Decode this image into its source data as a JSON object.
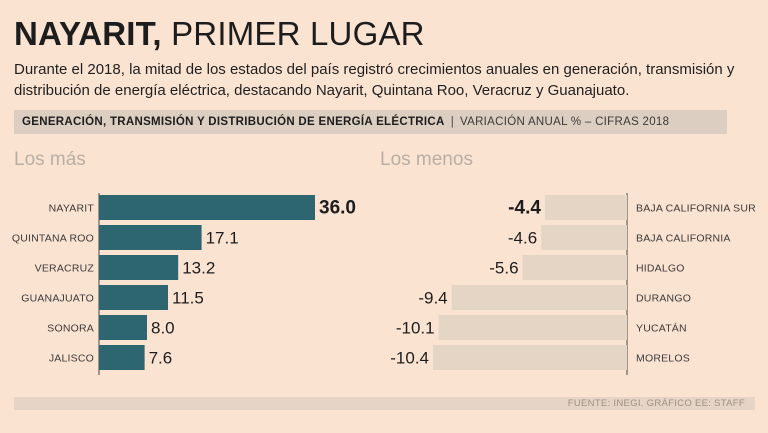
{
  "header": {
    "title_bold": "NAYARIT,",
    "title_rest": "PRIMER LUGAR",
    "subtitle": "Durante el 2018, la mitad de los estados del país registró crecimientos anuales en generación, transmisión y distribución de energía eléctrica, destacando Nayarit, Quintana Roo, Veracruz y Guanajuato."
  },
  "banner": {
    "title": "GENERACIÓN, TRANSMISIÓN Y DISTRIBUCIÓN DE ENERGÍA ELÉCTRICA",
    "separator": "|",
    "subtitle": "VARIACIÓN ANUAL % – CIFRAS 2018"
  },
  "sections": {
    "left": "Los más",
    "right": "Los menos"
  },
  "footer": {
    "source": "FUENTE: INEGI. GRÁFICO EE: STAFF"
  },
  "colors": {
    "positive_bar": "#2d6670",
    "negative_bar": "#e5d5c4",
    "axis": "#444444"
  },
  "chart_data": [
    {
      "type": "bar",
      "orientation": "horizontal",
      "title": "Los más",
      "categories": [
        "NAYARIT",
        "QUINTANA ROO",
        "VERACRUZ",
        "GUANAJUATO",
        "SONORA",
        "JALISCO"
      ],
      "values": [
        36.0,
        17.1,
        13.2,
        11.5,
        8.0,
        7.6
      ],
      "labels": [
        "36.0",
        "17.1",
        "13.2",
        "11.5",
        "8.0",
        "7.6"
      ],
      "unit": "%",
      "xlim": [
        0,
        36.0
      ]
    },
    {
      "type": "bar",
      "orientation": "horizontal",
      "title": "Los menos",
      "categories": [
        "BAJA CALIFORNIA SUR",
        "BAJA CALIFORNIA",
        "HIDALGO",
        "DURANGO",
        "YUCATÁN",
        "MORELOS"
      ],
      "values": [
        -4.4,
        -4.6,
        -5.6,
        -9.4,
        -10.1,
        -10.4
      ],
      "labels": [
        "-4.4",
        "-4.6",
        "-5.6",
        "-9.4",
        "-10.1",
        "-10.4"
      ],
      "unit": "%",
      "xlim": [
        -10.4,
        0
      ]
    }
  ]
}
